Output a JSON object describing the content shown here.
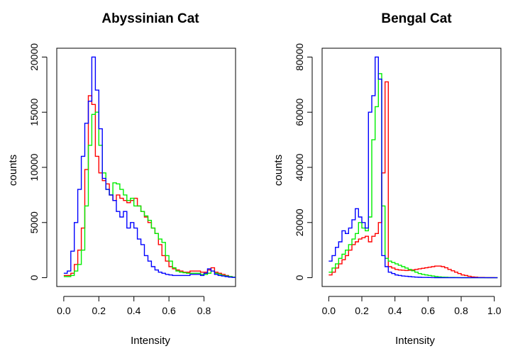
{
  "chart_data": [
    {
      "type": "histogram-step",
      "title": "Abyssinian Cat",
      "xlabel": "Intensity",
      "ylabel": "counts",
      "xlim": [
        -0.04,
        0.98
      ],
      "ylim": [
        -800,
        20800
      ],
      "xticks": [
        0.0,
        0.2,
        0.4,
        0.6,
        0.8
      ],
      "xtick_labels": [
        "0.0",
        "0.2",
        "0.4",
        "0.6",
        "0.8"
      ],
      "yticks": [
        0,
        5000,
        10000,
        15000,
        20000
      ],
      "ytick_labels": [
        "0",
        "5000",
        "10000",
        "15000",
        "20000"
      ],
      "grid": false,
      "series": [
        {
          "color": "#ff0000",
          "x": [
            0.0,
            0.02,
            0.04,
            0.06,
            0.08,
            0.1,
            0.12,
            0.14,
            0.16,
            0.18,
            0.2,
            0.22,
            0.24,
            0.26,
            0.28,
            0.3,
            0.32,
            0.34,
            0.36,
            0.38,
            0.4,
            0.42,
            0.44,
            0.46,
            0.48,
            0.5,
            0.52,
            0.54,
            0.56,
            0.58,
            0.6,
            0.62,
            0.64,
            0.66,
            0.68,
            0.7,
            0.72,
            0.74,
            0.76,
            0.78,
            0.8,
            0.82,
            0.84,
            0.86,
            0.88,
            0.9,
            0.92,
            0.94,
            0.96
          ],
          "y": [
            200,
            200,
            400,
            1200,
            2500,
            4500,
            9800,
            16500,
            15700,
            11000,
            9500,
            8800,
            8500,
            7500,
            7000,
            7500,
            7200,
            7000,
            6800,
            7000,
            7200,
            6500,
            6000,
            5500,
            5000,
            4500,
            4000,
            3000,
            2000,
            1500,
            1000,
            800,
            700,
            600,
            500,
            500,
            600,
            600,
            600,
            500,
            500,
            700,
            900,
            500,
            400,
            300,
            200,
            100,
            50
          ]
        },
        {
          "color": "#00ee00",
          "x": [
            0.0,
            0.02,
            0.04,
            0.06,
            0.08,
            0.1,
            0.12,
            0.14,
            0.16,
            0.18,
            0.2,
            0.22,
            0.24,
            0.26,
            0.28,
            0.3,
            0.32,
            0.34,
            0.36,
            0.38,
            0.4,
            0.42,
            0.44,
            0.46,
            0.48,
            0.5,
            0.52,
            0.54,
            0.56,
            0.58,
            0.6,
            0.62,
            0.64,
            0.66,
            0.68,
            0.7,
            0.72,
            0.74,
            0.76,
            0.78,
            0.8,
            0.82,
            0.84,
            0.86,
            0.88,
            0.9,
            0.92,
            0.94,
            0.96
          ],
          "y": [
            100,
            100,
            200,
            600,
            1200,
            2500,
            6500,
            12000,
            14800,
            15000,
            12000,
            9500,
            8000,
            7500,
            8600,
            8500,
            8000,
            7500,
            7000,
            7200,
            6500,
            6500,
            6000,
            5600,
            5200,
            4500,
            4000,
            3500,
            3200,
            2000,
            1500,
            900,
            600,
            500,
            450,
            400,
            400,
            400,
            400,
            300,
            300,
            400,
            600,
            400,
            300,
            200,
            150,
            100,
            50
          ]
        },
        {
          "color": "#0000ff",
          "x": [
            0.0,
            0.02,
            0.04,
            0.06,
            0.08,
            0.1,
            0.12,
            0.14,
            0.16,
            0.18,
            0.2,
            0.22,
            0.24,
            0.26,
            0.28,
            0.3,
            0.32,
            0.34,
            0.36,
            0.38,
            0.4,
            0.42,
            0.44,
            0.46,
            0.48,
            0.5,
            0.52,
            0.54,
            0.56,
            0.58,
            0.6,
            0.62,
            0.64,
            0.66,
            0.68,
            0.7,
            0.72,
            0.74,
            0.76,
            0.78,
            0.8,
            0.82,
            0.84,
            0.86,
            0.88,
            0.9,
            0.92,
            0.94,
            0.96
          ],
          "y": [
            400,
            600,
            2400,
            5000,
            8000,
            11000,
            14000,
            16000,
            20000,
            17000,
            13500,
            9000,
            8000,
            7500,
            7000,
            6000,
            5500,
            6000,
            4500,
            5000,
            4500,
            3500,
            3000,
            2000,
            1500,
            1000,
            700,
            500,
            400,
            300,
            250,
            200,
            200,
            200,
            200,
            200,
            300,
            300,
            300,
            200,
            400,
            800,
            600,
            300,
            200,
            150,
            100,
            50,
            20
          ]
        }
      ]
    },
    {
      "type": "histogram-step",
      "title": "Bengal Cat",
      "xlabel": "Intensity",
      "ylabel": "counts",
      "xlim": [
        -0.04,
        1.04
      ],
      "ylim": [
        -3200,
        83200
      ],
      "xticks": [
        0.0,
        0.2,
        0.4,
        0.6,
        0.8,
        1.0
      ],
      "xtick_labels": [
        "0.0",
        "0.2",
        "0.4",
        "0.6",
        "0.8",
        "1.0"
      ],
      "yticks": [
        0,
        20000,
        40000,
        60000,
        80000
      ],
      "ytick_labels": [
        "0",
        "20000",
        "40000",
        "60000",
        "80000"
      ],
      "grid": false,
      "series": [
        {
          "color": "#ff0000",
          "x": [
            0.0,
            0.02,
            0.04,
            0.06,
            0.08,
            0.1,
            0.12,
            0.14,
            0.16,
            0.18,
            0.2,
            0.22,
            0.24,
            0.26,
            0.28,
            0.3,
            0.32,
            0.34,
            0.36,
            0.38,
            0.4,
            0.42,
            0.44,
            0.46,
            0.48,
            0.5,
            0.52,
            0.54,
            0.56,
            0.58,
            0.6,
            0.62,
            0.64,
            0.66,
            0.68,
            0.7,
            0.72,
            0.74,
            0.76,
            0.78,
            0.8,
            0.82,
            0.84,
            0.86,
            0.88,
            0.9,
            0.92,
            0.94,
            0.96,
            0.98,
            1.0
          ],
          "y": [
            1000,
            2000,
            3500,
            5000,
            6500,
            8000,
            10000,
            12000,
            13000,
            14000,
            14500,
            15000,
            13000,
            15000,
            16000,
            20000,
            38000,
            71000,
            4000,
            3500,
            3000,
            2800,
            2700,
            2600,
            2700,
            2800,
            3000,
            3200,
            3400,
            3600,
            3800,
            4000,
            4200,
            4200,
            4000,
            3600,
            3000,
            2500,
            2000,
            1500,
            1000,
            800,
            500,
            300,
            200,
            100,
            100,
            50,
            20,
            10,
            0
          ]
        },
        {
          "color": "#00ee00",
          "x": [
            0.0,
            0.02,
            0.04,
            0.06,
            0.08,
            0.1,
            0.12,
            0.14,
            0.16,
            0.18,
            0.2,
            0.22,
            0.24,
            0.26,
            0.28,
            0.3,
            0.32,
            0.34,
            0.36,
            0.38,
            0.4,
            0.42,
            0.44,
            0.46,
            0.48,
            0.5,
            0.52,
            0.54,
            0.56,
            0.58,
            0.6,
            0.62,
            0.64,
            0.66,
            0.68,
            0.7,
            0.72,
            0.74,
            0.76,
            0.78,
            0.8,
            0.82,
            0.84,
            0.86,
            0.88,
            0.9,
            0.92,
            0.94,
            0.96,
            0.98,
            1.0
          ],
          "y": [
            2000,
            3500,
            5000,
            7000,
            8500,
            10000,
            12000,
            14000,
            16000,
            20000,
            18000,
            17000,
            22000,
            50000,
            62000,
            74000,
            26000,
            7000,
            6000,
            5500,
            5000,
            4500,
            4000,
            3500,
            3000,
            2500,
            2000,
            1500,
            1200,
            1000,
            800,
            600,
            400,
            300,
            200,
            150,
            100,
            80,
            60,
            40,
            20,
            10,
            0,
            0,
            0,
            0,
            0,
            0,
            0,
            0,
            0
          ]
        },
        {
          "color": "#0000ff",
          "x": [
            0.0,
            0.02,
            0.04,
            0.06,
            0.08,
            0.1,
            0.12,
            0.14,
            0.16,
            0.18,
            0.2,
            0.22,
            0.24,
            0.26,
            0.28,
            0.3,
            0.32,
            0.34,
            0.36,
            0.38,
            0.4,
            0.42,
            0.44,
            0.46,
            0.48,
            0.5,
            0.52,
            0.54,
            0.56,
            0.58,
            0.6,
            0.62,
            0.64,
            0.66,
            0.68,
            0.7,
            0.72,
            0.74,
            0.76,
            0.78,
            0.8,
            0.82,
            0.84,
            0.86,
            0.88,
            0.9,
            0.92,
            0.94,
            0.96,
            0.98,
            1.0
          ],
          "y": [
            6000,
            8000,
            11000,
            13000,
            17000,
            16000,
            18000,
            21000,
            25000,
            22000,
            20000,
            18000,
            60000,
            66000,
            80000,
            72000,
            8000,
            4000,
            2000,
            1500,
            1000,
            800,
            600,
            500,
            400,
            300,
            200,
            150,
            100,
            80,
            60,
            40,
            20,
            10,
            0,
            0,
            0,
            0,
            0,
            0,
            0,
            0,
            0,
            0,
            0,
            0,
            0,
            0,
            0,
            0,
            0
          ]
        }
      ]
    }
  ]
}
